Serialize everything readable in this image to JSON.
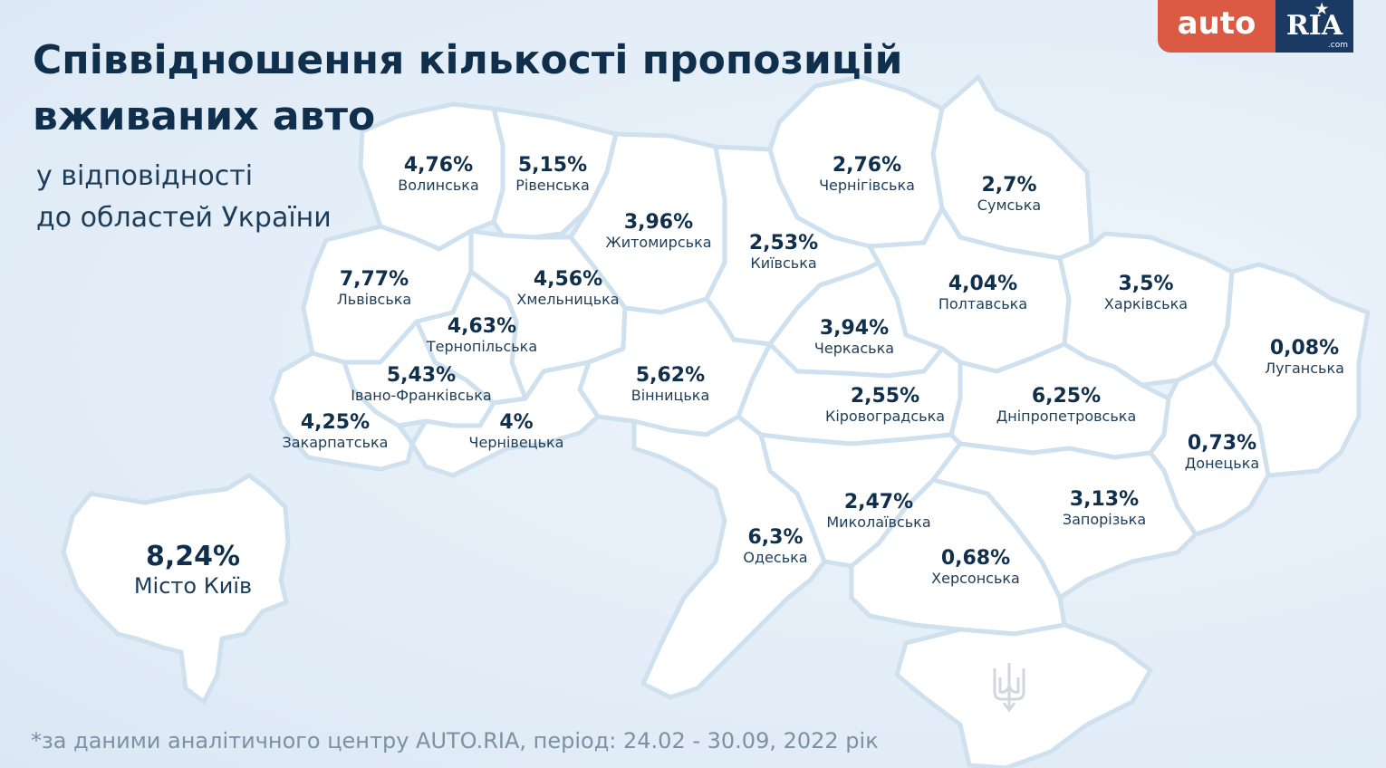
{
  "title": "Співвідношення кількості пропозицій вживаних авто",
  "subtitle_line1": "у відповідності",
  "subtitle_line2": "до областей України",
  "logo": {
    "auto": "auto",
    "ria": "RIA",
    "com": ".com"
  },
  "regions": [
    {
      "name": "Волинська",
      "share": "4,76%"
    },
    {
      "name": "Рівенська",
      "share": "5,15%"
    },
    {
      "name": "Житомирська",
      "share": "3,96%"
    },
    {
      "name": "Чернігівська",
      "share": "2,76%"
    },
    {
      "name": "Сумська",
      "share": "2,7%"
    },
    {
      "name": "Київська",
      "share": "2,53%"
    },
    {
      "name": "Львівська",
      "share": "7,77%"
    },
    {
      "name": "Хмельницька",
      "share": "4,56%"
    },
    {
      "name": "Тернопільська",
      "share": "4,63%"
    },
    {
      "name": "Полтавська",
      "share": "4,04%"
    },
    {
      "name": "Харківська",
      "share": "3,5%"
    },
    {
      "name": "Черкаська",
      "share": "3,94%"
    },
    {
      "name": "Луганська",
      "share": "0,08%"
    },
    {
      "name": "Івано-Франківська",
      "share": "5,43%"
    },
    {
      "name": "Вінницька",
      "share": "5,62%"
    },
    {
      "name": "Кіровоградська",
      "share": "2,55%"
    },
    {
      "name": "Дніпропетровська",
      "share": "6,25%"
    },
    {
      "name": "Закарпатська",
      "share": "4,25%"
    },
    {
      "name": "Чернівецька",
      "share": "4%"
    },
    {
      "name": "Донецька",
      "share": "0,73%"
    },
    {
      "name": "Миколаївська",
      "share": "2,47%"
    },
    {
      "name": "Запорізька",
      "share": "3,13%"
    },
    {
      "name": "Одеська",
      "share": "6,3%"
    },
    {
      "name": "Херсонська",
      "share": "0,68%"
    }
  ],
  "kyiv_city": {
    "name": "Місто Київ",
    "share": "8,24%"
  },
  "footnote": "*за даними аналітичного центру AUTO.RIA, період: 24.02 - 30.09, 2022 рік",
  "colors": {
    "background": "#e3eef8",
    "land": "#ffffff",
    "border": "#cfe0ef",
    "text_dark": "#0f2f4c",
    "logo_auto": "#db5a44",
    "logo_ria": "#1b3a63",
    "footnote": "#7d90a4"
  }
}
